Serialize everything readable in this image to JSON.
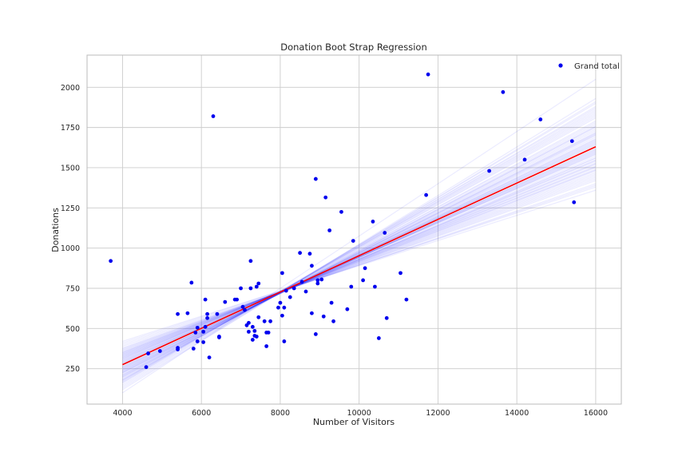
{
  "chart_data": {
    "type": "scatter",
    "title": "Donation Boot Strap Regression",
    "xlabel": "Number of Visitors",
    "ylabel": "Donations",
    "xlim": [
      3100,
      16650
    ],
    "ylim": [
      30,
      2200
    ],
    "xticks": [
      4000,
      6000,
      8000,
      10000,
      12000,
      14000,
      16000
    ],
    "yticks": [
      250,
      500,
      750,
      1000,
      1250,
      1500,
      1750,
      2000
    ],
    "grid": true,
    "legend": {
      "position": "top-right",
      "entries": [
        "Grand total"
      ]
    },
    "colors": {
      "points": "#0000ee",
      "fit_line": "#ff0000",
      "bootstrap_lines": "#2222ff",
      "grid": "#cccccc",
      "axes": "#bbbbbb"
    },
    "series": [
      {
        "name": "Grand total",
        "kind": "points",
        "points": [
          [
            3700,
            920
          ],
          [
            4600,
            260
          ],
          [
            4650,
            345
          ],
          [
            4950,
            360
          ],
          [
            5400,
            590
          ],
          [
            5400,
            380
          ],
          [
            5400,
            370
          ],
          [
            5650,
            595
          ],
          [
            5750,
            785
          ],
          [
            5800,
            375
          ],
          [
            5850,
            475
          ],
          [
            5900,
            505
          ],
          [
            5900,
            420
          ],
          [
            6050,
            415
          ],
          [
            6050,
            480
          ],
          [
            6100,
            680
          ],
          [
            6100,
            510
          ],
          [
            6150,
            565
          ],
          [
            6150,
            590
          ],
          [
            6200,
            320
          ],
          [
            6300,
            1820
          ],
          [
            6400,
            590
          ],
          [
            6450,
            450
          ],
          [
            6450,
            445
          ],
          [
            6600,
            665
          ],
          [
            6850,
            680
          ],
          [
            6900,
            680
          ],
          [
            7000,
            750
          ],
          [
            7050,
            635
          ],
          [
            7100,
            615
          ],
          [
            7150,
            520
          ],
          [
            7200,
            535
          ],
          [
            7200,
            480
          ],
          [
            7250,
            920
          ],
          [
            7250,
            750
          ],
          [
            7300,
            510
          ],
          [
            7300,
            430
          ],
          [
            7350,
            485
          ],
          [
            7350,
            455
          ],
          [
            7400,
            760
          ],
          [
            7400,
            450
          ],
          [
            7450,
            780
          ],
          [
            7450,
            570
          ],
          [
            7600,
            545
          ],
          [
            7650,
            475
          ],
          [
            7650,
            390
          ],
          [
            7700,
            475
          ],
          [
            7750,
            545
          ],
          [
            7950,
            630
          ],
          [
            8000,
            660
          ],
          [
            8050,
            845
          ],
          [
            8050,
            580
          ],
          [
            8100,
            630
          ],
          [
            8100,
            420
          ],
          [
            8150,
            735
          ],
          [
            8250,
            695
          ],
          [
            8350,
            750
          ],
          [
            8500,
            970
          ],
          [
            8550,
            790
          ],
          [
            8650,
            730
          ],
          [
            8750,
            965
          ],
          [
            8800,
            595
          ],
          [
            8800,
            890
          ],
          [
            8900,
            1430
          ],
          [
            8950,
            780
          ],
          [
            8950,
            800
          ],
          [
            8900,
            465
          ],
          [
            9050,
            805
          ],
          [
            9100,
            575
          ],
          [
            9150,
            1315
          ],
          [
            9250,
            1110
          ],
          [
            9300,
            660
          ],
          [
            9350,
            545
          ],
          [
            9550,
            1225
          ],
          [
            9700,
            620
          ],
          [
            9800,
            760
          ],
          [
            9850,
            1045
          ],
          [
            10100,
            800
          ],
          [
            10150,
            875
          ],
          [
            10350,
            1165
          ],
          [
            10400,
            760
          ],
          [
            10500,
            440
          ],
          [
            10650,
            1095
          ],
          [
            10700,
            565
          ],
          [
            11050,
            845
          ],
          [
            11200,
            680
          ],
          [
            11700,
            1330
          ],
          [
            11750,
            2080
          ],
          [
            13300,
            1480
          ],
          [
            13650,
            1970
          ],
          [
            14200,
            1550
          ],
          [
            14600,
            1800
          ],
          [
            15400,
            1665
          ],
          [
            15450,
            1285
          ]
        ]
      },
      {
        "kind": "line",
        "x": [
          4000,
          16000
        ],
        "y": [
          275,
          1630
        ]
      }
    ],
    "bootstrap_lines": [
      [
        275,
        1630
      ],
      [
        240,
        1680
      ],
      [
        310,
        1580
      ],
      [
        200,
        1760
      ],
      [
        330,
        1520
      ],
      [
        260,
        1650
      ],
      [
        290,
        1600
      ],
      [
        180,
        1820
      ],
      [
        350,
        1480
      ],
      [
        225,
        1700
      ],
      [
        300,
        1560
      ],
      [
        150,
        1880
      ],
      [
        370,
        1440
      ],
      [
        210,
        1740
      ],
      [
        265,
        1620
      ],
      [
        320,
        1540
      ],
      [
        190,
        1790
      ],
      [
        340,
        1500
      ],
      [
        250,
        1670
      ],
      [
        280,
        1610
      ],
      [
        120,
        1930
      ],
      [
        400,
        1390
      ],
      [
        230,
        1710
      ],
      [
        295,
        1590
      ],
      [
        175,
        1840
      ],
      [
        360,
        1460
      ],
      [
        245,
        1660
      ],
      [
        315,
        1550
      ],
      [
        205,
        1750
      ],
      [
        335,
        1510
      ],
      [
        270,
        1640
      ],
      [
        100,
        2050
      ],
      [
        420,
        1360
      ],
      [
        220,
        1720
      ],
      [
        305,
        1570
      ],
      [
        185,
        1810
      ],
      [
        345,
        1490
      ],
      [
        255,
        1655
      ],
      [
        285,
        1605
      ],
      [
        160,
        1860
      ],
      [
        380,
        1420
      ],
      [
        235,
        1690
      ],
      [
        325,
        1530
      ],
      [
        195,
        1770
      ],
      [
        355,
        1470
      ],
      [
        260,
        1645
      ],
      [
        140,
        1900
      ],
      [
        390,
        1400
      ],
      [
        215,
        1730
      ],
      [
        310,
        1560
      ],
      [
        170,
        1850
      ],
      [
        365,
        1450
      ],
      [
        240,
        1675
      ],
      [
        300,
        1585
      ],
      [
        130,
        1910
      ],
      [
        410,
        1380
      ],
      [
        225,
        1715
      ],
      [
        330,
        1525
      ],
      [
        200,
        1780
      ],
      [
        350,
        1485
      ],
      [
        180,
        1830
      ],
      [
        290,
        1595
      ],
      [
        250,
        1665
      ],
      [
        320,
        1545
      ],
      [
        210,
        1755
      ],
      [
        340,
        1505
      ],
      [
        165,
        1870
      ],
      [
        375,
        1430
      ],
      [
        230,
        1705
      ],
      [
        280,
        1615
      ]
    ]
  }
}
